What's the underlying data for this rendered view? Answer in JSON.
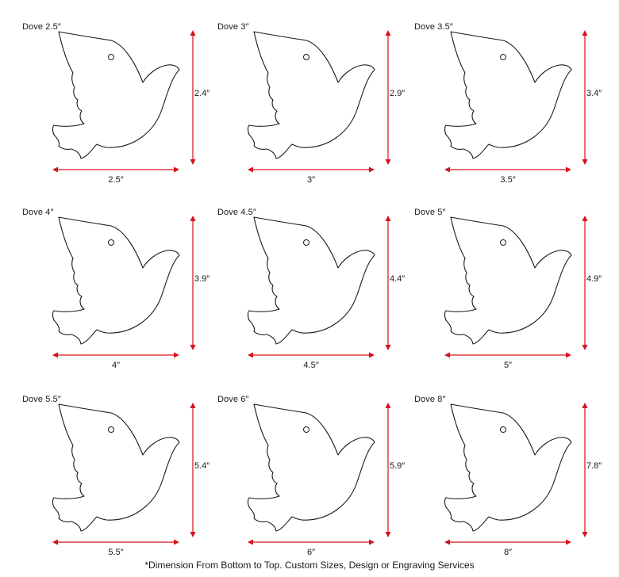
{
  "colors": {
    "dimension": "#d4101c",
    "outline": "#1a1a1a"
  },
  "doves": [
    {
      "title": "Dove 2.5″",
      "height": "2.4″",
      "width": "2.5″"
    },
    {
      "title": "Dove 3″",
      "height": "2.9″",
      "width": "3″"
    },
    {
      "title": "Dove 3.5″",
      "height": "3.4″",
      "width": "3.5″"
    },
    {
      "title": "Dove 4″",
      "height": "3.9″",
      "width": "4″"
    },
    {
      "title": "Dove 4.5″",
      "height": "4.4″",
      "width": "4.5″"
    },
    {
      "title": "Dove 5″",
      "height": "4.9″",
      "width": "5″"
    },
    {
      "title": "Dove 5.5″",
      "height": "5.4″",
      "width": "5.5″"
    },
    {
      "title": "Dove 6″",
      "height": "5.9″",
      "width": "6″"
    },
    {
      "title": "Dove 8″",
      "height": "7.8″",
      "width": "8″"
    }
  ],
  "footnote": "*Dimension From Bottom to Top. Custom Sizes, Design or Engraving Services"
}
